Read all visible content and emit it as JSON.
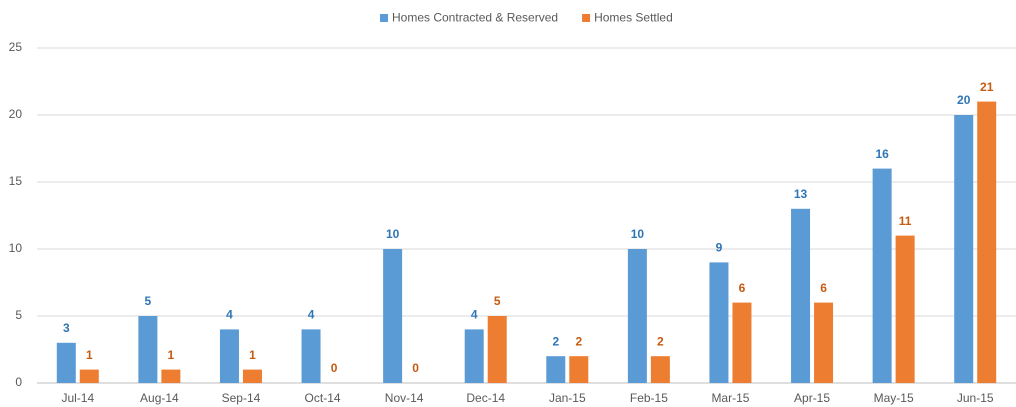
{
  "chart_data": {
    "type": "bar",
    "categories": [
      "Jul-14",
      "Aug-14",
      "Sep-14",
      "Oct-14",
      "Nov-14",
      "Dec-14",
      "Jan-15",
      "Feb-15",
      "Mar-15",
      "Apr-15",
      "May-15",
      "Jun-15"
    ],
    "series": [
      {
        "name": "Homes Contracted & Reserved",
        "color": "#5b9bd5",
        "label_color": "#2e75b6",
        "values": [
          3,
          5,
          4,
          4,
          10,
          4,
          2,
          10,
          9,
          13,
          16,
          20
        ]
      },
      {
        "name": "Homes Settled",
        "color": "#ed7d31",
        "label_color": "#c55a11",
        "values": [
          1,
          1,
          1,
          0,
          0,
          5,
          2,
          2,
          6,
          6,
          11,
          21
        ]
      }
    ],
    "ylim": [
      0,
      25
    ],
    "yticks": [
      0,
      5,
      10,
      15,
      20,
      25
    ],
    "grid": true,
    "legend": "top"
  }
}
